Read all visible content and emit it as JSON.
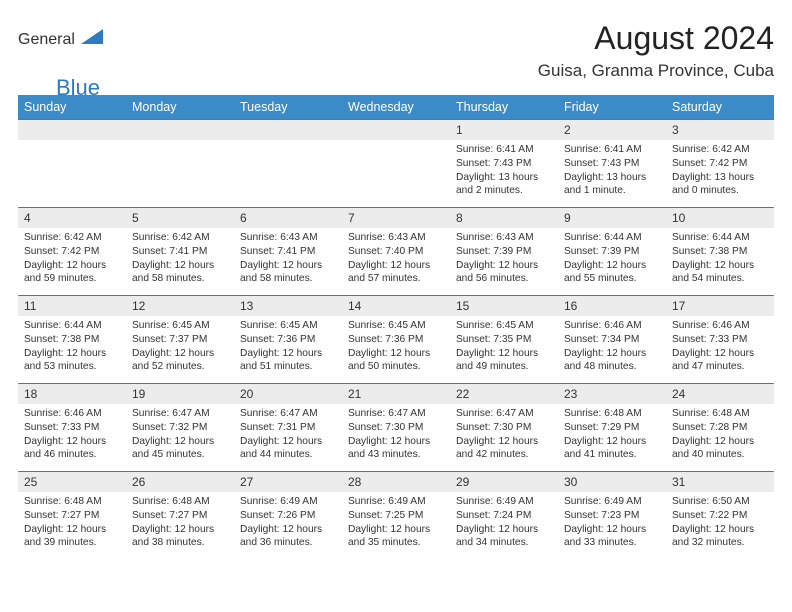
{
  "logo": {
    "text1": "General",
    "text2": "Blue",
    "shape_color": "#2d7bc0"
  },
  "header": {
    "title": "August 2024",
    "location": "Guisa, Granma Province, Cuba"
  },
  "colors": {
    "header_bg": "#3b8bc8",
    "header_text": "#ffffff",
    "daynum_bg": "#ececec",
    "border": "#4a7aa8",
    "text": "#333333",
    "logo_gray": "#5a5a5a",
    "logo_blue": "#2d7bc0"
  },
  "weekdays": [
    "Sunday",
    "Monday",
    "Tuesday",
    "Wednesday",
    "Thursday",
    "Friday",
    "Saturday"
  ],
  "labels": {
    "sunrise": "Sunrise:",
    "sunset": "Sunset:",
    "daylight": "Daylight:"
  },
  "blanks_before": 4,
  "days": [
    {
      "n": 1,
      "sr": "6:41 AM",
      "ss": "7:43 PM",
      "dl": "13 hours and 2 minutes."
    },
    {
      "n": 2,
      "sr": "6:41 AM",
      "ss": "7:43 PM",
      "dl": "13 hours and 1 minute."
    },
    {
      "n": 3,
      "sr": "6:42 AM",
      "ss": "7:42 PM",
      "dl": "13 hours and 0 minutes."
    },
    {
      "n": 4,
      "sr": "6:42 AM",
      "ss": "7:42 PM",
      "dl": "12 hours and 59 minutes."
    },
    {
      "n": 5,
      "sr": "6:42 AM",
      "ss": "7:41 PM",
      "dl": "12 hours and 58 minutes."
    },
    {
      "n": 6,
      "sr": "6:43 AM",
      "ss": "7:41 PM",
      "dl": "12 hours and 58 minutes."
    },
    {
      "n": 7,
      "sr": "6:43 AM",
      "ss": "7:40 PM",
      "dl": "12 hours and 57 minutes."
    },
    {
      "n": 8,
      "sr": "6:43 AM",
      "ss": "7:39 PM",
      "dl": "12 hours and 56 minutes."
    },
    {
      "n": 9,
      "sr": "6:44 AM",
      "ss": "7:39 PM",
      "dl": "12 hours and 55 minutes."
    },
    {
      "n": 10,
      "sr": "6:44 AM",
      "ss": "7:38 PM",
      "dl": "12 hours and 54 minutes."
    },
    {
      "n": 11,
      "sr": "6:44 AM",
      "ss": "7:38 PM",
      "dl": "12 hours and 53 minutes."
    },
    {
      "n": 12,
      "sr": "6:45 AM",
      "ss": "7:37 PM",
      "dl": "12 hours and 52 minutes."
    },
    {
      "n": 13,
      "sr": "6:45 AM",
      "ss": "7:36 PM",
      "dl": "12 hours and 51 minutes."
    },
    {
      "n": 14,
      "sr": "6:45 AM",
      "ss": "7:36 PM",
      "dl": "12 hours and 50 minutes."
    },
    {
      "n": 15,
      "sr": "6:45 AM",
      "ss": "7:35 PM",
      "dl": "12 hours and 49 minutes."
    },
    {
      "n": 16,
      "sr": "6:46 AM",
      "ss": "7:34 PM",
      "dl": "12 hours and 48 minutes."
    },
    {
      "n": 17,
      "sr": "6:46 AM",
      "ss": "7:33 PM",
      "dl": "12 hours and 47 minutes."
    },
    {
      "n": 18,
      "sr": "6:46 AM",
      "ss": "7:33 PM",
      "dl": "12 hours and 46 minutes."
    },
    {
      "n": 19,
      "sr": "6:47 AM",
      "ss": "7:32 PM",
      "dl": "12 hours and 45 minutes."
    },
    {
      "n": 20,
      "sr": "6:47 AM",
      "ss": "7:31 PM",
      "dl": "12 hours and 44 minutes."
    },
    {
      "n": 21,
      "sr": "6:47 AM",
      "ss": "7:30 PM",
      "dl": "12 hours and 43 minutes."
    },
    {
      "n": 22,
      "sr": "6:47 AM",
      "ss": "7:30 PM",
      "dl": "12 hours and 42 minutes."
    },
    {
      "n": 23,
      "sr": "6:48 AM",
      "ss": "7:29 PM",
      "dl": "12 hours and 41 minutes."
    },
    {
      "n": 24,
      "sr": "6:48 AM",
      "ss": "7:28 PM",
      "dl": "12 hours and 40 minutes."
    },
    {
      "n": 25,
      "sr": "6:48 AM",
      "ss": "7:27 PM",
      "dl": "12 hours and 39 minutes."
    },
    {
      "n": 26,
      "sr": "6:48 AM",
      "ss": "7:27 PM",
      "dl": "12 hours and 38 minutes."
    },
    {
      "n": 27,
      "sr": "6:49 AM",
      "ss": "7:26 PM",
      "dl": "12 hours and 36 minutes."
    },
    {
      "n": 28,
      "sr": "6:49 AM",
      "ss": "7:25 PM",
      "dl": "12 hours and 35 minutes."
    },
    {
      "n": 29,
      "sr": "6:49 AM",
      "ss": "7:24 PM",
      "dl": "12 hours and 34 minutes."
    },
    {
      "n": 30,
      "sr": "6:49 AM",
      "ss": "7:23 PM",
      "dl": "12 hours and 33 minutes."
    },
    {
      "n": 31,
      "sr": "6:50 AM",
      "ss": "7:22 PM",
      "dl": "12 hours and 32 minutes."
    }
  ]
}
